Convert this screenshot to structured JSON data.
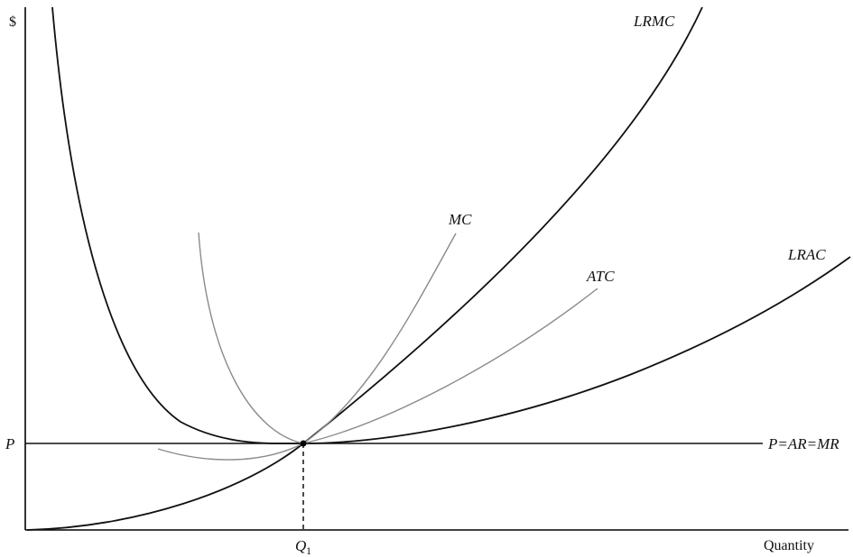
{
  "chart_data": {
    "type": "line",
    "title": "",
    "ylabel": "$",
    "xlabel": "Quantity",
    "grid": false,
    "legend": "none",
    "ticks": {
      "y_label": "P",
      "x_label_main": "Q",
      "x_label_sub": "1"
    },
    "series": [
      {
        "name": "LRMC",
        "color": "#111111"
      },
      {
        "name": "LRAC",
        "color": "#111111"
      },
      {
        "name": "MC",
        "color": "#8a8a8a"
      },
      {
        "name": "ATC",
        "color": "#8a8a8a"
      }
    ],
    "price_line_label": "P=AR=MR",
    "equilibrium": {
      "label": "Q1"
    }
  }
}
